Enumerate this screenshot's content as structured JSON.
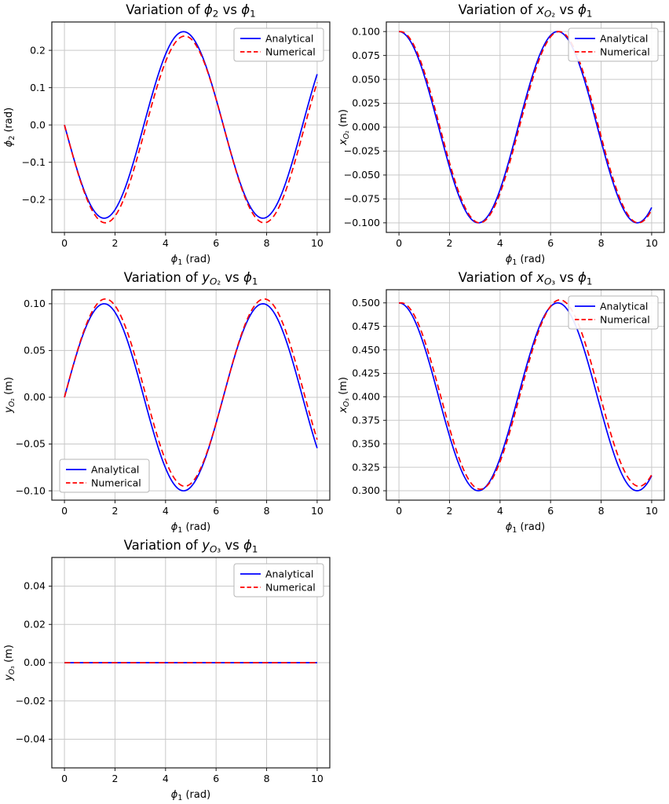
{
  "figure": {
    "background": "#ffffff",
    "grid_color": "#c9c9c9",
    "spine_color": "#1a1a1a",
    "analytical_color": "#0000ff",
    "numerical_color": "#ff0000",
    "legend_labels": [
      "Analytical",
      "Numerical"
    ],
    "xlabel": "[i]ϕ[/i][sub]1[/sub] (rad)"
  },
  "chart_data": [
    {
      "id": "phi2",
      "type": "line",
      "grid_pos": [
        0,
        0
      ],
      "title": "Variation of [i]ϕ[/i][sub]2[/sub] vs [i]ϕ[/i][sub]1[/sub]",
      "xlabel": "[i]ϕ[/i][sub]1[/sub] (rad)",
      "ylabel": "[i]ϕ[/i][sub]2[/sub] (rad)",
      "xlim": [
        -0.5,
        10.5
      ],
      "ylim": [
        -0.288,
        0.276
      ],
      "xticks": [
        0,
        2,
        4,
        6,
        8,
        10
      ],
      "yticks": [
        0.2,
        0.1,
        0.0,
        -0.1,
        -0.2
      ],
      "ytick_decimals": 1,
      "grid": true,
      "legend_loc": "upper right",
      "x_range": [
        0,
        10
      ],
      "x_sample": [
        0,
        1,
        2,
        3,
        4,
        5,
        6,
        7,
        8,
        9,
        10
      ],
      "series": [
        {
          "name": "Analytical",
          "color": "#0000ff",
          "style": "solid",
          "model": {
            "c0": 0,
            "lin": 0,
            "terms": [
              {
                "fn": "sin",
                "A": -0.25,
                "w": 1,
                "p": 0
              }
            ]
          },
          "y_at_sample": [
            0,
            -0.2104,
            -0.2273,
            -0.0353,
            0.1892,
            0.2397,
            0.0699,
            -0.1642,
            -0.2473,
            -0.103,
            0.136
          ]
        },
        {
          "name": "Numerical",
          "color": "#ff0000",
          "style": "dashed",
          "model": {
            "c0": -0.012,
            "lin": 0,
            "terms": [
              {
                "fn": "sin",
                "A": -0.25,
                "w": 1,
                "p": 0
              },
              {
                "fn": "cos",
                "A": 0.012,
                "w": 1,
                "p": 0
              }
            ]
          },
          "y_at_sample": [
            0,
            -0.2159,
            -0.2443,
            -0.0592,
            0.1694,
            0.2311,
            0.0694,
            -0.1672,
            -0.2611,
            -0.1259,
            0.1139
          ]
        }
      ]
    },
    {
      "id": "xO2",
      "type": "line",
      "grid_pos": [
        0,
        1
      ],
      "title": "Variation of [i]x[/i][sub][i]O[/i]₂[/sub] vs [i]ϕ[/i][sub]1[/sub]",
      "xlabel": "[i]ϕ[/i][sub]1[/sub] (rad)",
      "ylabel": "[i]x[/i][sub][i]O[/i]₂[/sub] (m)",
      "xlim": [
        -0.5,
        10.5
      ],
      "ylim": [
        -0.11,
        0.11
      ],
      "xticks": [
        0,
        2,
        4,
        6,
        8,
        10
      ],
      "yticks": [
        0.1,
        0.075,
        0.05,
        0.025,
        0.0,
        -0.025,
        -0.05,
        -0.075,
        -0.1
      ],
      "ytick_decimals": 3,
      "grid": true,
      "legend_loc": "upper right",
      "x_range": [
        0,
        10
      ],
      "x_sample": [
        0,
        1,
        2,
        3,
        4,
        5,
        6,
        7,
        8,
        9,
        10
      ],
      "series": [
        {
          "name": "Analytical",
          "color": "#0000ff",
          "style": "solid",
          "model": {
            "c0": 0,
            "lin": 0,
            "terms": [
              {
                "fn": "cos",
                "A": 0.1,
                "w": 1,
                "p": 0
              }
            ]
          },
          "y_at_sample": [
            0.1,
            0.054,
            -0.0416,
            -0.099,
            -0.0654,
            0.0284,
            0.096,
            0.0754,
            -0.0146,
            -0.0911,
            -0.0839
          ]
        },
        {
          "name": "Numerical",
          "color": "#ff0000",
          "style": "dashed",
          "model": {
            "c0": 0,
            "lin": 0,
            "terms": [
              {
                "fn": "cos",
                "A": 0.1,
                "w": 1,
                "p": -0.05
              }
            ]
          },
          "y_at_sample": [
            0.0999,
            0.0582,
            -0.037,
            -0.0982,
            -0.0693,
            0.0235,
            0.0945,
            0.0786,
            -0.0096,
            -0.0889,
            -0.0865
          ]
        }
      ]
    },
    {
      "id": "yO2",
      "type": "line",
      "grid_pos": [
        1,
        0
      ],
      "title": "Variation of [i]y[/i][sub][i]O[/i]₂[/sub] vs [i]ϕ[/i][sub]1[/sub]",
      "xlabel": "[i]ϕ[/i][sub]1[/sub] (rad)",
      "ylabel": "[i]y[/i][sub][i]O[/i]₂[/sub] (m)",
      "xlim": [
        -0.5,
        10.5
      ],
      "ylim": [
        -0.11,
        0.115
      ],
      "xticks": [
        0,
        2,
        4,
        6,
        8,
        10
      ],
      "yticks": [
        0.1,
        0.05,
        0.0,
        -0.05,
        -0.1
      ],
      "ytick_decimals": 2,
      "grid": true,
      "legend_loc": "lower left",
      "x_range": [
        0,
        10
      ],
      "x_sample": [
        0,
        1,
        2,
        3,
        4,
        5,
        6,
        7,
        8,
        9,
        10
      ],
      "series": [
        {
          "name": "Analytical",
          "color": "#0000ff",
          "style": "solid",
          "model": {
            "c0": 0,
            "lin": 0,
            "terms": [
              {
                "fn": "sin",
                "A": 0.1,
                "w": 1,
                "p": 0
              }
            ]
          },
          "y_at_sample": [
            0,
            0.0841,
            0.0909,
            0.0141,
            -0.0757,
            -0.0959,
            -0.0279,
            0.0657,
            0.0989,
            0.0412,
            -0.0544
          ]
        },
        {
          "name": "Numerical",
          "color": "#ff0000",
          "style": "dashed",
          "model": {
            "c0": 0.005,
            "lin": 0,
            "terms": [
              {
                "fn": "sin",
                "A": 0.1,
                "w": 1,
                "p": 0
              },
              {
                "fn": "cos",
                "A": -0.005,
                "w": 1,
                "p": 0
              }
            ]
          },
          "y_at_sample": [
            0,
            0.0864,
            0.098,
            0.0241,
            -0.0674,
            -0.0923,
            -0.0277,
            0.0669,
            0.1046,
            0.0508,
            -0.0452
          ]
        }
      ]
    },
    {
      "id": "xO3",
      "type": "line",
      "grid_pos": [
        1,
        1
      ],
      "title": "Variation of [i]x[/i][sub][i]O[/i]₃[/sub] vs [i]ϕ[/i][sub]1[/sub]",
      "xlabel": "[i]ϕ[/i][sub]1[/sub] (rad)",
      "ylabel": "[i]x[/i][sub][i]O[/i]₃[/sub] (m)",
      "xlim": [
        -0.5,
        10.5
      ],
      "ylim": [
        0.29,
        0.514
      ],
      "xticks": [
        0,
        2,
        4,
        6,
        8,
        10
      ],
      "yticks": [
        0.5,
        0.475,
        0.45,
        0.425,
        0.4,
        0.375,
        0.35,
        0.325,
        0.3
      ],
      "ytick_decimals": 3,
      "grid": true,
      "legend_loc": "upper right",
      "x_range": [
        0,
        10
      ],
      "x_sample": [
        0,
        1,
        2,
        3,
        4,
        5,
        6,
        7,
        8,
        9,
        10
      ],
      "series": [
        {
          "name": "Analytical",
          "color": "#0000ff",
          "style": "solid",
          "model": {
            "c0": 0.4,
            "lin": 0,
            "terms": [
              {
                "fn": "cos",
                "A": 0.1,
                "w": 1,
                "p": 0
              }
            ]
          },
          "y_at_sample": [
            0.5,
            0.454,
            0.3584,
            0.301,
            0.3346,
            0.4284,
            0.496,
            0.4754,
            0.3855,
            0.3089,
            0.3161
          ]
        },
        {
          "name": "Numerical",
          "color": "#ff0000",
          "style": "dashed",
          "model": {
            "c0": 0.4,
            "lin": 0.0005,
            "terms": [
              {
                "fn": "cos",
                "A": 0.1,
                "w": 1,
                "p": -0.08
              }
            ]
          },
          "y_at_sample": [
            0.4997,
            0.4611,
            0.3668,
            0.3039,
            0.3308,
            0.4231,
            0.4965,
            0.4839,
            0.3974,
            0.317,
            0.317
          ]
        }
      ]
    },
    {
      "id": "yO3",
      "type": "line",
      "grid_pos": [
        2,
        0
      ],
      "title": "Variation of [i]y[/i][sub][i]O[/i]₃[/sub] vs [i]ϕ[/i][sub]1[/sub]",
      "xlabel": "[i]ϕ[/i][sub]1[/sub] (rad)",
      "ylabel": "[i]y[/i][sub][i]O[/i]₃[/sub] (m)",
      "xlim": [
        -0.5,
        10.5
      ],
      "ylim": [
        -0.055,
        0.055
      ],
      "xticks": [
        0,
        2,
        4,
        6,
        8,
        10
      ],
      "yticks": [
        0.04,
        0.02,
        0.0,
        -0.02,
        -0.04
      ],
      "ytick_decimals": 2,
      "grid": true,
      "legend_loc": "upper right",
      "x_range": [
        0,
        10
      ],
      "x_sample": [
        0,
        1,
        2,
        3,
        4,
        5,
        6,
        7,
        8,
        9,
        10
      ],
      "series": [
        {
          "name": "Analytical",
          "color": "#0000ff",
          "style": "solid",
          "model": {
            "c0": 0,
            "lin": 0,
            "terms": []
          },
          "y_at_sample": [
            0,
            0,
            0,
            0,
            0,
            0,
            0,
            0,
            0,
            0,
            0
          ]
        },
        {
          "name": "Numerical",
          "color": "#ff0000",
          "style": "dashed",
          "model": {
            "c0": 0,
            "lin": 0,
            "terms": []
          },
          "y_at_sample": [
            0,
            0,
            0,
            0,
            0,
            0,
            0,
            0,
            0,
            0,
            0
          ]
        }
      ]
    }
  ]
}
